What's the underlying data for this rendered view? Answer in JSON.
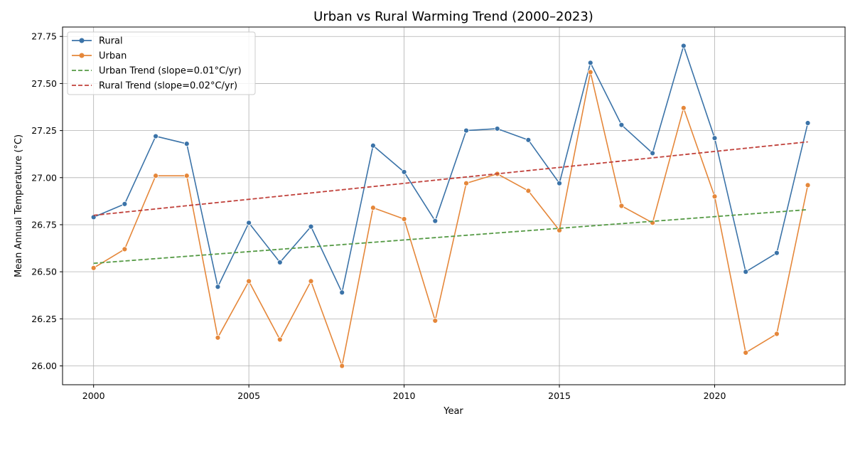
{
  "chart_data": {
    "type": "line",
    "title": "Urban vs Rural Warming Trend (2000–2023)",
    "xlabel": "Year",
    "ylabel": "Mean Annual Temperature (°C)",
    "xlim": [
      1999,
      2024.2
    ],
    "ylim": [
      25.9,
      27.8
    ],
    "xticks": [
      2000,
      2005,
      2010,
      2015,
      2020
    ],
    "yticks": [
      26.0,
      26.25,
      26.5,
      26.75,
      27.0,
      27.25,
      27.5,
      27.75
    ],
    "ytick_labels": [
      "26.00",
      "26.25",
      "26.50",
      "26.75",
      "27.00",
      "27.25",
      "27.50",
      "27.75"
    ],
    "grid": true,
    "legend_position": "top-left",
    "x": [
      2000,
      2001,
      2002,
      2003,
      2004,
      2005,
      2006,
      2007,
      2008,
      2009,
      2010,
      2011,
      2012,
      2013,
      2014,
      2015,
      2016,
      2017,
      2018,
      2019,
      2020,
      2021,
      2022,
      2023
    ],
    "series": [
      {
        "name": "Rural",
        "style": "solid-markers",
        "color": "#3b73a8",
        "values": [
          26.79,
          26.86,
          27.22,
          27.18,
          26.42,
          26.76,
          26.55,
          26.74,
          26.39,
          27.17,
          27.03,
          26.77,
          27.25,
          27.26,
          27.2,
          26.97,
          27.61,
          27.28,
          27.13,
          27.7,
          27.21,
          26.5,
          26.6,
          27.29
        ]
      },
      {
        "name": "Urban",
        "style": "solid-markers",
        "color": "#e5873a",
        "values": [
          26.52,
          26.62,
          27.01,
          27.01,
          26.15,
          26.45,
          26.14,
          26.45,
          26.0,
          26.84,
          26.78,
          26.24,
          26.97,
          27.02,
          26.93,
          26.72,
          27.56,
          26.85,
          26.76,
          27.37,
          26.9,
          26.07,
          26.17,
          26.96
        ]
      },
      {
        "name": "Urban Trend (slope=0.01°C/yr)",
        "style": "dashed",
        "color": "#559a45",
        "x": [
          2000,
          2023
        ],
        "values": [
          26.545,
          26.83
        ]
      },
      {
        "name": "Rural Trend (slope=0.02°C/yr)",
        "style": "dashed",
        "color": "#c0403a",
        "x": [
          2000,
          2023
        ],
        "values": [
          26.8,
          27.19
        ]
      }
    ]
  }
}
